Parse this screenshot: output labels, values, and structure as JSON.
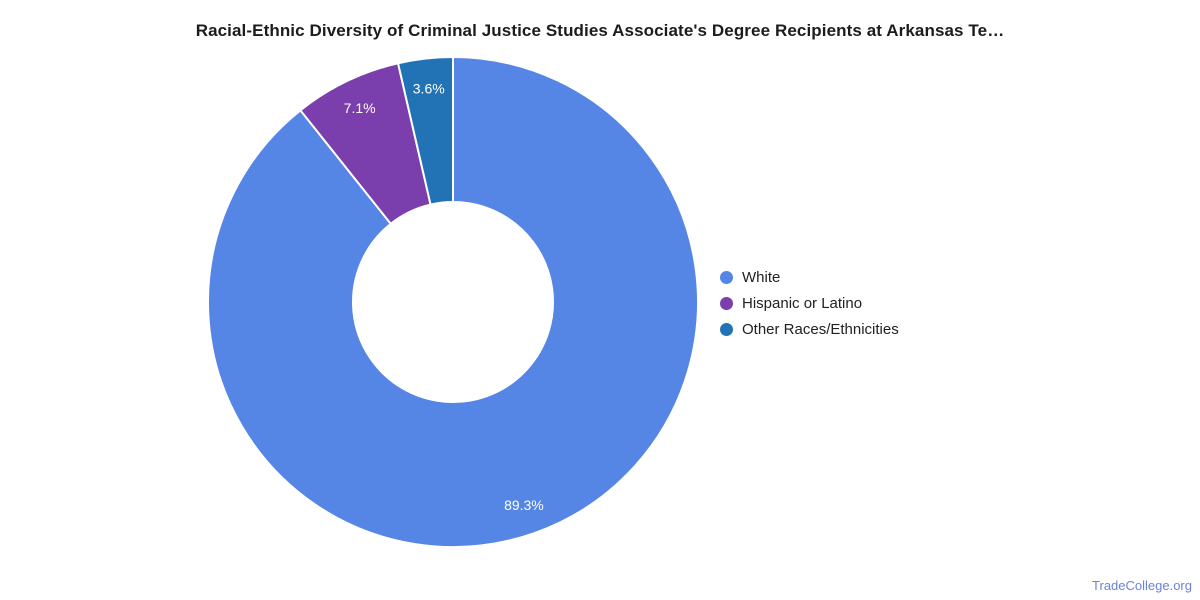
{
  "chart_data": {
    "type": "pie",
    "donut": true,
    "title": "Racial-Ethnic Diversity of Criminal Justice Studies Associate's Degree Recipients at Arkansas Te…",
    "direction": "clockwise",
    "start_at": "top",
    "legend_position": "middle-right",
    "hole_ratio": 0.41,
    "slices": [
      {
        "label": "White",
        "value": 89.3,
        "pct_label": "89.3%",
        "color": "#5585e5"
      },
      {
        "label": "Hispanic or Latino",
        "value": 7.1,
        "pct_label": "7.1%",
        "color": "#7b3fad"
      },
      {
        "label": "Other Races/Ethnicities",
        "value": 3.6,
        "pct_label": "3.6%",
        "color": "#2273b6"
      }
    ],
    "slice_label_color": "#ffffff",
    "slice_gap_color": "#ffffff"
  },
  "footer": {
    "link_text": "TradeCollege.org",
    "link_color": "#6b82d9"
  }
}
